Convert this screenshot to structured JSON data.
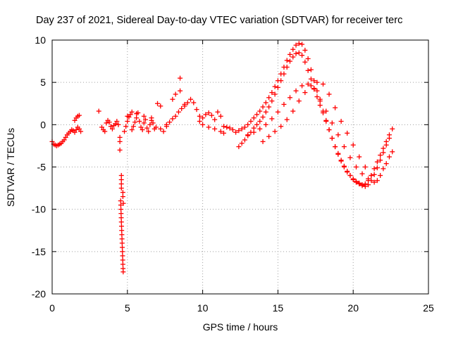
{
  "chart_data": {
    "type": "scatter",
    "title": "Day 237 of 2021, Sidereal Day-to-day VTEC variation (SDTVAR) for receiver terc",
    "xlabel": "GPS time / hours",
    "ylabel": "SDTVAR / TECUs",
    "xlim": [
      0,
      25
    ],
    "ylim": [
      -20,
      10
    ],
    "xticks": [
      0,
      5,
      10,
      15,
      20,
      25
    ],
    "xtick_labels": [
      "0",
      "5",
      "10",
      "15",
      "20",
      "25"
    ],
    "yticks": [
      -20,
      -15,
      -10,
      -5,
      0,
      5,
      10
    ],
    "ytick_labels": [
      "-20",
      "-15",
      "-10",
      "-5",
      "0",
      "5",
      "10"
    ],
    "grid": true,
    "marker": "+",
    "color": "#ff0000",
    "series": [
      {
        "name": "SDTVAR",
        "x": [
          0.0,
          0.1,
          0.2,
          0.3,
          0.4,
          0.5,
          0.6,
          0.7,
          0.8,
          0.9,
          1.0,
          1.1,
          1.2,
          1.3,
          1.4,
          1.5,
          1.6,
          1.7,
          1.8,
          1.9,
          1.5,
          1.6,
          1.7,
          1.8,
          3.1,
          3.3,
          3.4,
          3.5,
          3.6,
          3.7,
          3.8,
          3.9,
          4.0,
          4.1,
          4.2,
          4.3,
          4.4,
          4.5,
          4.5,
          4.5,
          4.6,
          4.6,
          4.6,
          4.6,
          4.7,
          4.7,
          4.55,
          4.56,
          4.57,
          4.58,
          4.59,
          4.6,
          4.61,
          4.62,
          4.63,
          4.64,
          4.65,
          4.66,
          4.67,
          4.68,
          4.69,
          4.7,
          4.71,
          4.72,
          4.73,
          4.8,
          4.9,
          5.0,
          5.1,
          5.2,
          5.3,
          5.4,
          5.5,
          5.6,
          5.7,
          5.8,
          5.9,
          6.0,
          6.1,
          6.2,
          6.3,
          6.4,
          6.5,
          6.6,
          6.7,
          6.8,
          6.9,
          5.0,
          5.3,
          5.6,
          6.1,
          6.6,
          7.0,
          7.2,
          7.4,
          7.6,
          7.8,
          8.0,
          8.2,
          8.4,
          8.6,
          8.8,
          9.0,
          7.2,
          7.6,
          8.0,
          8.2,
          8.5,
          8.8,
          8.5,
          9.2,
          9.4,
          9.6,
          9.8,
          10.0,
          10.2,
          10.4,
          10.6,
          10.8,
          11.0,
          11.2,
          9.8,
          10.0,
          10.4,
          10.8,
          11.2,
          11.4,
          11.4,
          11.6,
          11.8,
          12.0,
          12.2,
          12.4,
          12.6,
          12.8,
          13.0,
          13.2,
          13.4,
          13.6,
          13.8,
          14.0,
          14.2,
          14.4,
          14.6,
          14.8,
          15.0,
          15.2,
          15.4,
          15.6,
          15.8,
          16.0,
          16.2,
          16.4,
          16.6,
          16.8,
          17.0,
          17.2,
          17.4,
          17.6,
          17.8,
          18.0,
          18.2,
          18.4,
          18.6,
          18.8,
          19.0,
          19.2,
          19.4,
          19.6,
          19.8,
          20.0,
          20.2,
          20.4,
          20.6,
          20.8,
          21.0,
          21.2,
          21.4,
          21.6,
          21.8,
          22.0,
          22.2,
          22.4,
          22.6,
          12.4,
          12.6,
          12.8,
          13.0,
          13.2,
          13.4,
          13.6,
          13.8,
          14.0,
          14.2,
          14.4,
          14.6,
          14.8,
          15.0,
          15.2,
          15.4,
          15.6,
          15.8,
          16.0,
          16.2,
          16.4,
          16.6,
          16.8,
          17.0,
          17.2,
          17.4,
          17.6,
          17.8,
          18.0,
          18.2,
          18.4,
          18.6,
          18.8,
          19.0,
          19.2,
          19.4,
          19.6,
          19.8,
          20.0,
          20.2,
          20.4,
          20.6,
          20.8,
          21.0,
          21.2,
          21.4,
          21.6,
          21.8,
          22.0,
          22.2,
          22.4,
          13.0,
          13.4,
          13.8,
          14.2,
          14.6,
          15.0,
          15.4,
          15.8,
          16.2,
          16.6,
          17.0,
          17.4,
          17.8,
          18.2,
          18.6,
          19.0,
          19.4,
          19.8,
          20.2,
          20.6,
          21.0,
          21.4,
          21.8,
          22.2,
          22.6,
          14.0,
          14.4,
          14.8,
          15.2,
          15.6,
          16.0,
          16.4,
          16.8,
          17.2,
          17.6,
          18.0,
          18.4,
          18.8,
          19.2,
          19.6,
          20.0,
          20.4,
          20.8,
          21.2,
          21.6,
          22.0,
          22.4
        ],
        "y": [
          -2.0,
          -2.3,
          -2.4,
          -2.5,
          -2.4,
          -2.3,
          -2.2,
          -2.0,
          -1.8,
          -1.5,
          -1.2,
          -1.0,
          -0.8,
          -0.6,
          -0.7,
          -0.9,
          -0.6,
          -0.3,
          -0.5,
          -0.8,
          0.5,
          0.8,
          1.0,
          1.1,
          1.6,
          -0.3,
          -0.6,
          -0.8,
          0.2,
          0.5,
          0.3,
          -0.2,
          -0.5,
          -0.1,
          0.1,
          0.4,
          0.0,
          -1.5,
          -2.0,
          -3.0,
          -6.0,
          -6.5,
          -7.0,
          -7.5,
          -8.0,
          -8.5,
          -9.0,
          -9.5,
          -10.0,
          -10.5,
          -11.0,
          -11.5,
          -12.0,
          -12.5,
          -13.0,
          -13.5,
          -14.0,
          -14.5,
          -15.0,
          -15.5,
          -16.0,
          -16.5,
          -17.0,
          -17.4,
          -9.3,
          -0.8,
          -0.2,
          0.4,
          0.9,
          1.2,
          -0.6,
          -0.2,
          0.3,
          0.8,
          1.4,
          0.4,
          -0.3,
          -0.6,
          0.2,
          0.6,
          -0.4,
          -0.8,
          0.0,
          0.5,
          0.2,
          -0.5,
          -0.3,
          1.0,
          1.5,
          1.3,
          1.0,
          0.8,
          2.5,
          2.2,
          -0.8,
          -0.2,
          0.3,
          0.7,
          1.0,
          1.5,
          1.9,
          2.2,
          2.6,
          -0.5,
          0.0,
          3.0,
          3.6,
          4.0,
          2.4,
          5.5,
          3.0,
          2.6,
          1.8,
          1.0,
          0.8,
          1.2,
          1.4,
          1.1,
          0.6,
          1.5,
          1.0,
          0.4,
          0.0,
          -0.3,
          -0.5,
          -0.8,
          -1.0,
          -0.2,
          -0.3,
          -0.4,
          -0.6,
          -0.9,
          -0.7,
          -0.5,
          -0.3,
          0.0,
          0.4,
          0.8,
          1.2,
          1.6,
          2.1,
          2.6,
          3.2,
          3.8,
          4.5,
          5.2,
          6.0,
          6.8,
          7.6,
          8.3,
          8.9,
          9.4,
          9.6,
          9.5,
          8.8,
          7.8,
          6.5,
          5.2,
          4.0,
          2.8,
          1.6,
          0.5,
          -0.6,
          -1.6,
          -2.6,
          -3.5,
          -4.3,
          -5.0,
          -5.6,
          -6.0,
          -6.4,
          -6.7,
          -6.9,
          -7.1,
          -7.0,
          -6.6,
          -6.0,
          -5.2,
          -4.4,
          -3.6,
          -2.8,
          -2.0,
          -1.2,
          -0.5,
          -2.6,
          -2.2,
          -1.8,
          -1.3,
          -0.9,
          -0.4,
          0.0,
          0.4,
          0.9,
          1.5,
          2.1,
          2.8,
          3.6,
          4.4,
          5.2,
          6.0,
          6.8,
          7.5,
          8.0,
          8.4,
          8.5,
          8.2,
          7.4,
          6.4,
          5.4,
          4.3,
          3.3,
          2.3,
          1.4,
          0.4,
          -0.6,
          -1.6,
          -2.6,
          -3.4,
          -4.2,
          -4.9,
          -5.5,
          -6.0,
          -6.5,
          -6.8,
          -7.0,
          -7.2,
          -7.3,
          -7.1,
          -6.6,
          -5.9,
          -5.1,
          -4.2,
          -3.3,
          -2.4,
          -1.6,
          -1.2,
          -0.9,
          -0.5,
          0.0,
          0.7,
          1.5,
          2.4,
          3.2,
          4.0,
          4.6,
          4.8,
          4.2,
          3.0,
          1.6,
          0.2,
          -1.2,
          -2.6,
          -3.9,
          -5.0,
          -5.8,
          -6.4,
          -6.8,
          -6.0,
          -4.6,
          -3.2,
          -2.0,
          -1.4,
          -0.8,
          -0.2,
          0.6,
          1.6,
          2.8,
          3.8,
          4.6,
          5.0,
          4.8,
          3.6,
          2.0,
          0.4,
          -1.0,
          -2.4,
          -3.8,
          -5.0,
          -6.0,
          -6.6,
          -5.2,
          -3.8
        ]
      }
    ]
  }
}
